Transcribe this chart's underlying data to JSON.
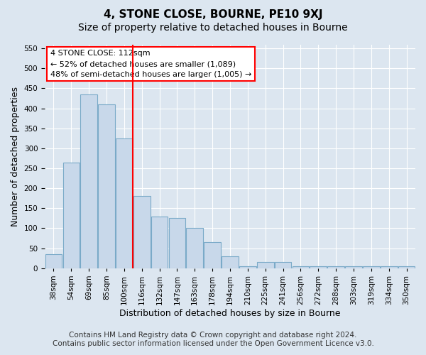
{
  "title": "4, STONE CLOSE, BOURNE, PE10 9XJ",
  "subtitle": "Size of property relative to detached houses in Bourne",
  "xlabel": "Distribution of detached houses by size in Bourne",
  "ylabel": "Number of detached properties",
  "categories": [
    "38sqm",
    "54sqm",
    "69sqm",
    "85sqm",
    "100sqm",
    "116sqm",
    "132sqm",
    "147sqm",
    "163sqm",
    "178sqm",
    "194sqm",
    "210sqm",
    "225sqm",
    "241sqm",
    "256sqm",
    "272sqm",
    "288sqm",
    "303sqm",
    "319sqm",
    "334sqm",
    "350sqm"
  ],
  "bar_values": [
    35,
    265,
    435,
    410,
    325,
    180,
    130,
    125,
    100,
    65,
    30,
    5,
    15,
    15,
    5,
    5,
    5,
    5,
    5,
    5,
    5
  ],
  "bar_color": "#c8d8ea",
  "bar_edgecolor": "#7aaac8",
  "vline_position": 4.5,
  "annotation_text": "4 STONE CLOSE: 112sqm\n← 52% of detached houses are smaller (1,089)\n48% of semi-detached houses are larger (1,005) →",
  "ylim": [
    0,
    560
  ],
  "yticks": [
    0,
    50,
    100,
    150,
    200,
    250,
    300,
    350,
    400,
    450,
    500,
    550
  ],
  "background_color": "#dce6f0",
  "plot_bg_color": "#dce6f0",
  "footer_line1": "Contains HM Land Registry data © Crown copyright and database right 2024.",
  "footer_line2": "Contains public sector information licensed under the Open Government Licence v3.0.",
  "title_fontsize": 11,
  "subtitle_fontsize": 10,
  "axis_label_fontsize": 9,
  "tick_fontsize": 7.5,
  "annotation_fontsize": 8,
  "footer_fontsize": 7.5
}
